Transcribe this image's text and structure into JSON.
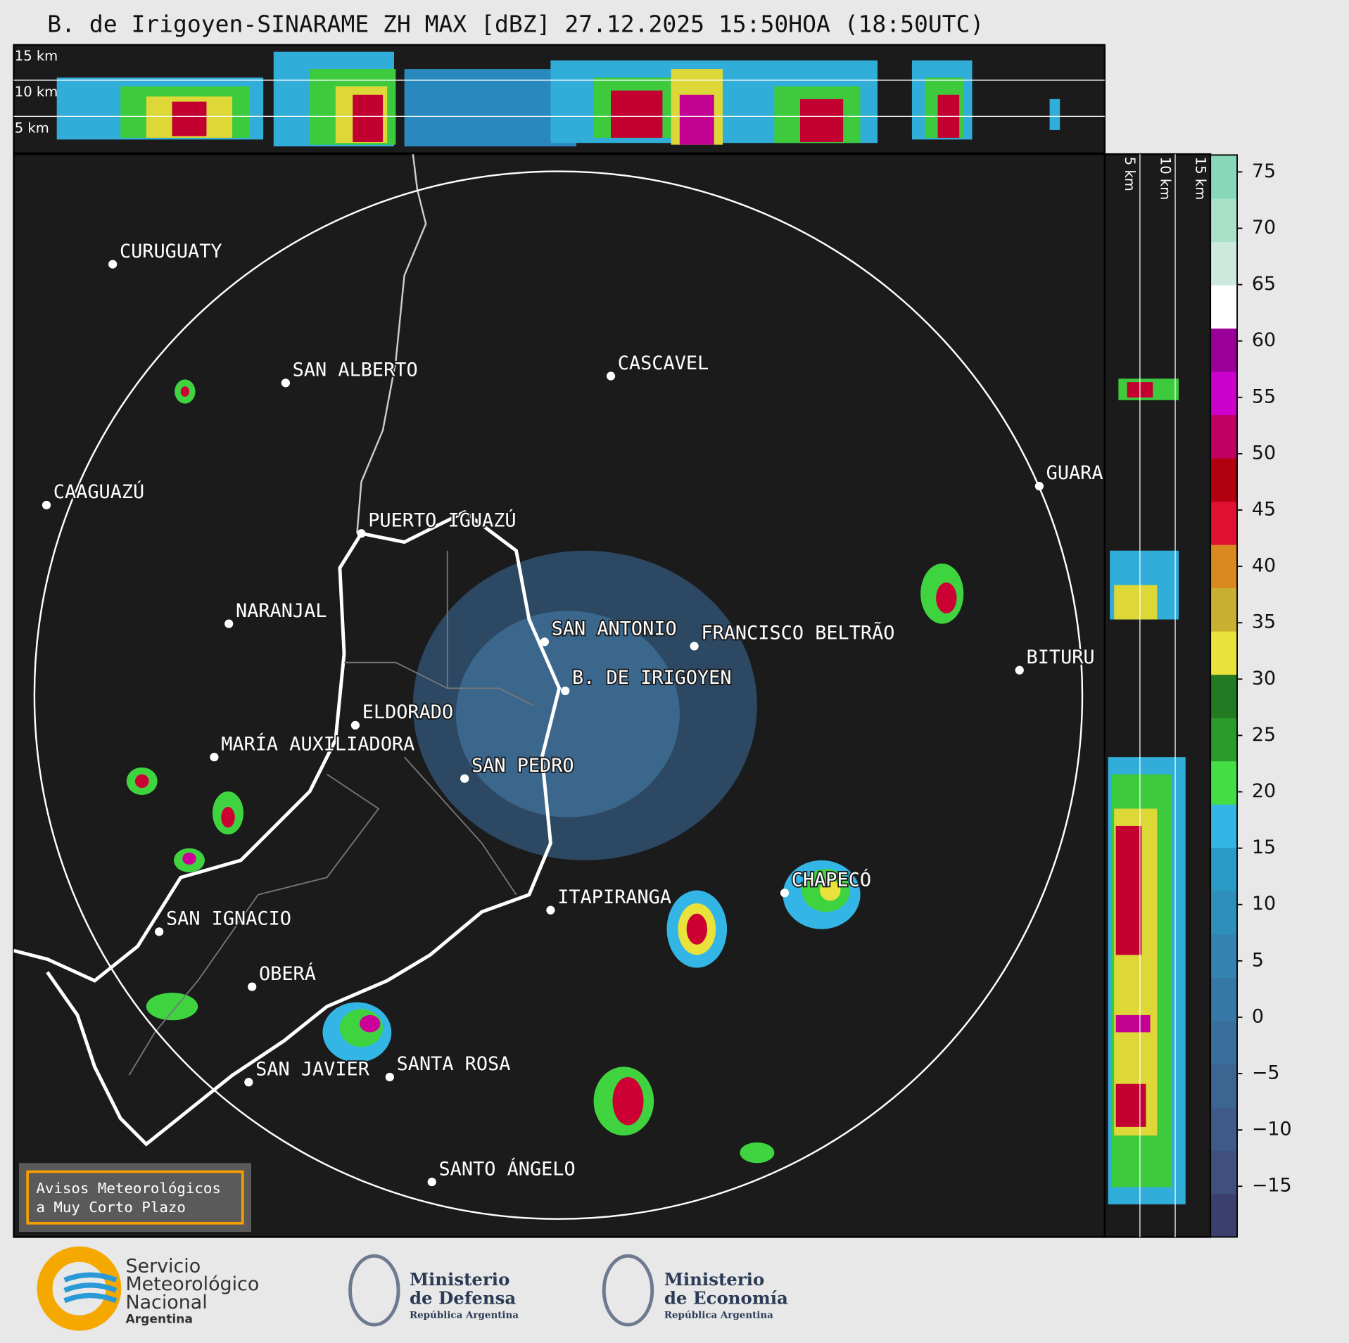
{
  "title": "B. de Irigoyen-SINARAME ZH MAX [dBZ] 27.12.2025 15:50HOA (18:50UTC)",
  "top_panel": {
    "height_labels": [
      "5 km",
      "10 km",
      "15 km"
    ]
  },
  "side_panel": {
    "height_labels": [
      "5 km",
      "10 km",
      "15 km"
    ]
  },
  "map": {
    "cities": [
      "CURUGUATY",
      "SAN ALBERTO",
      "CASCAVEL",
      "CAAGUAZÚ",
      "GUARA",
      "PUERTO IGUAZÚ",
      "NARANJAL",
      "SAN ANTONIO",
      "FRANCISCO BELTRÃO",
      "BITURU",
      "B. DE IRIGOYEN",
      "ELDORADO",
      "MARÍA AUXILIADORA",
      "SAN PEDRO",
      "CHAPECÓ",
      "ITAPIRANGA",
      "SAN IGNACIO",
      "OBERÁ",
      "SAN JAVIER",
      "SANTA ROSA",
      "SANTO ÁNGELO"
    ]
  },
  "notice": [
    "Avisos Meteorológicos",
    "a Muy Corto Plazo"
  ],
  "colorbar": {
    "lim": [
      -19.5,
      76.5
    ],
    "ticks": [
      {
        "value": -15,
        "label": "−15"
      },
      {
        "value": -10,
        "label": "−10"
      },
      {
        "value": -5,
        "label": "−5"
      },
      0,
      5,
      10,
      15,
      20,
      25,
      30,
      35,
      40,
      45,
      50,
      55,
      60,
      65,
      70,
      75
    ],
    "colors": [
      "#3b3f6e",
      "#3f4f7e",
      "#3f5a88",
      "#3d6592",
      "#3a6f9c",
      "#3779a6",
      "#3484b1",
      "#2f8fbc",
      "#2a9ac7",
      "#33b5e5",
      "#44dd44",
      "#2a9a2a",
      "#227a22",
      "#e8e23a",
      "#c8b030",
      "#d88a20",
      "#e01030",
      "#b00010",
      "#c00060",
      "#cc00cc",
      "#9a0099",
      "#ffffff",
      "#cde9dd",
      "#a8e0c8",
      "#86d8b8"
    ]
  },
  "footer": {
    "smn": [
      "Servicio",
      "Meteorológico",
      "Nacional",
      "Argentina"
    ],
    "defensa": [
      "Ministerio",
      "de Defensa",
      "República Argentina"
    ],
    "economia": [
      "Ministerio",
      "de Economía",
      "República Argentina"
    ]
  }
}
